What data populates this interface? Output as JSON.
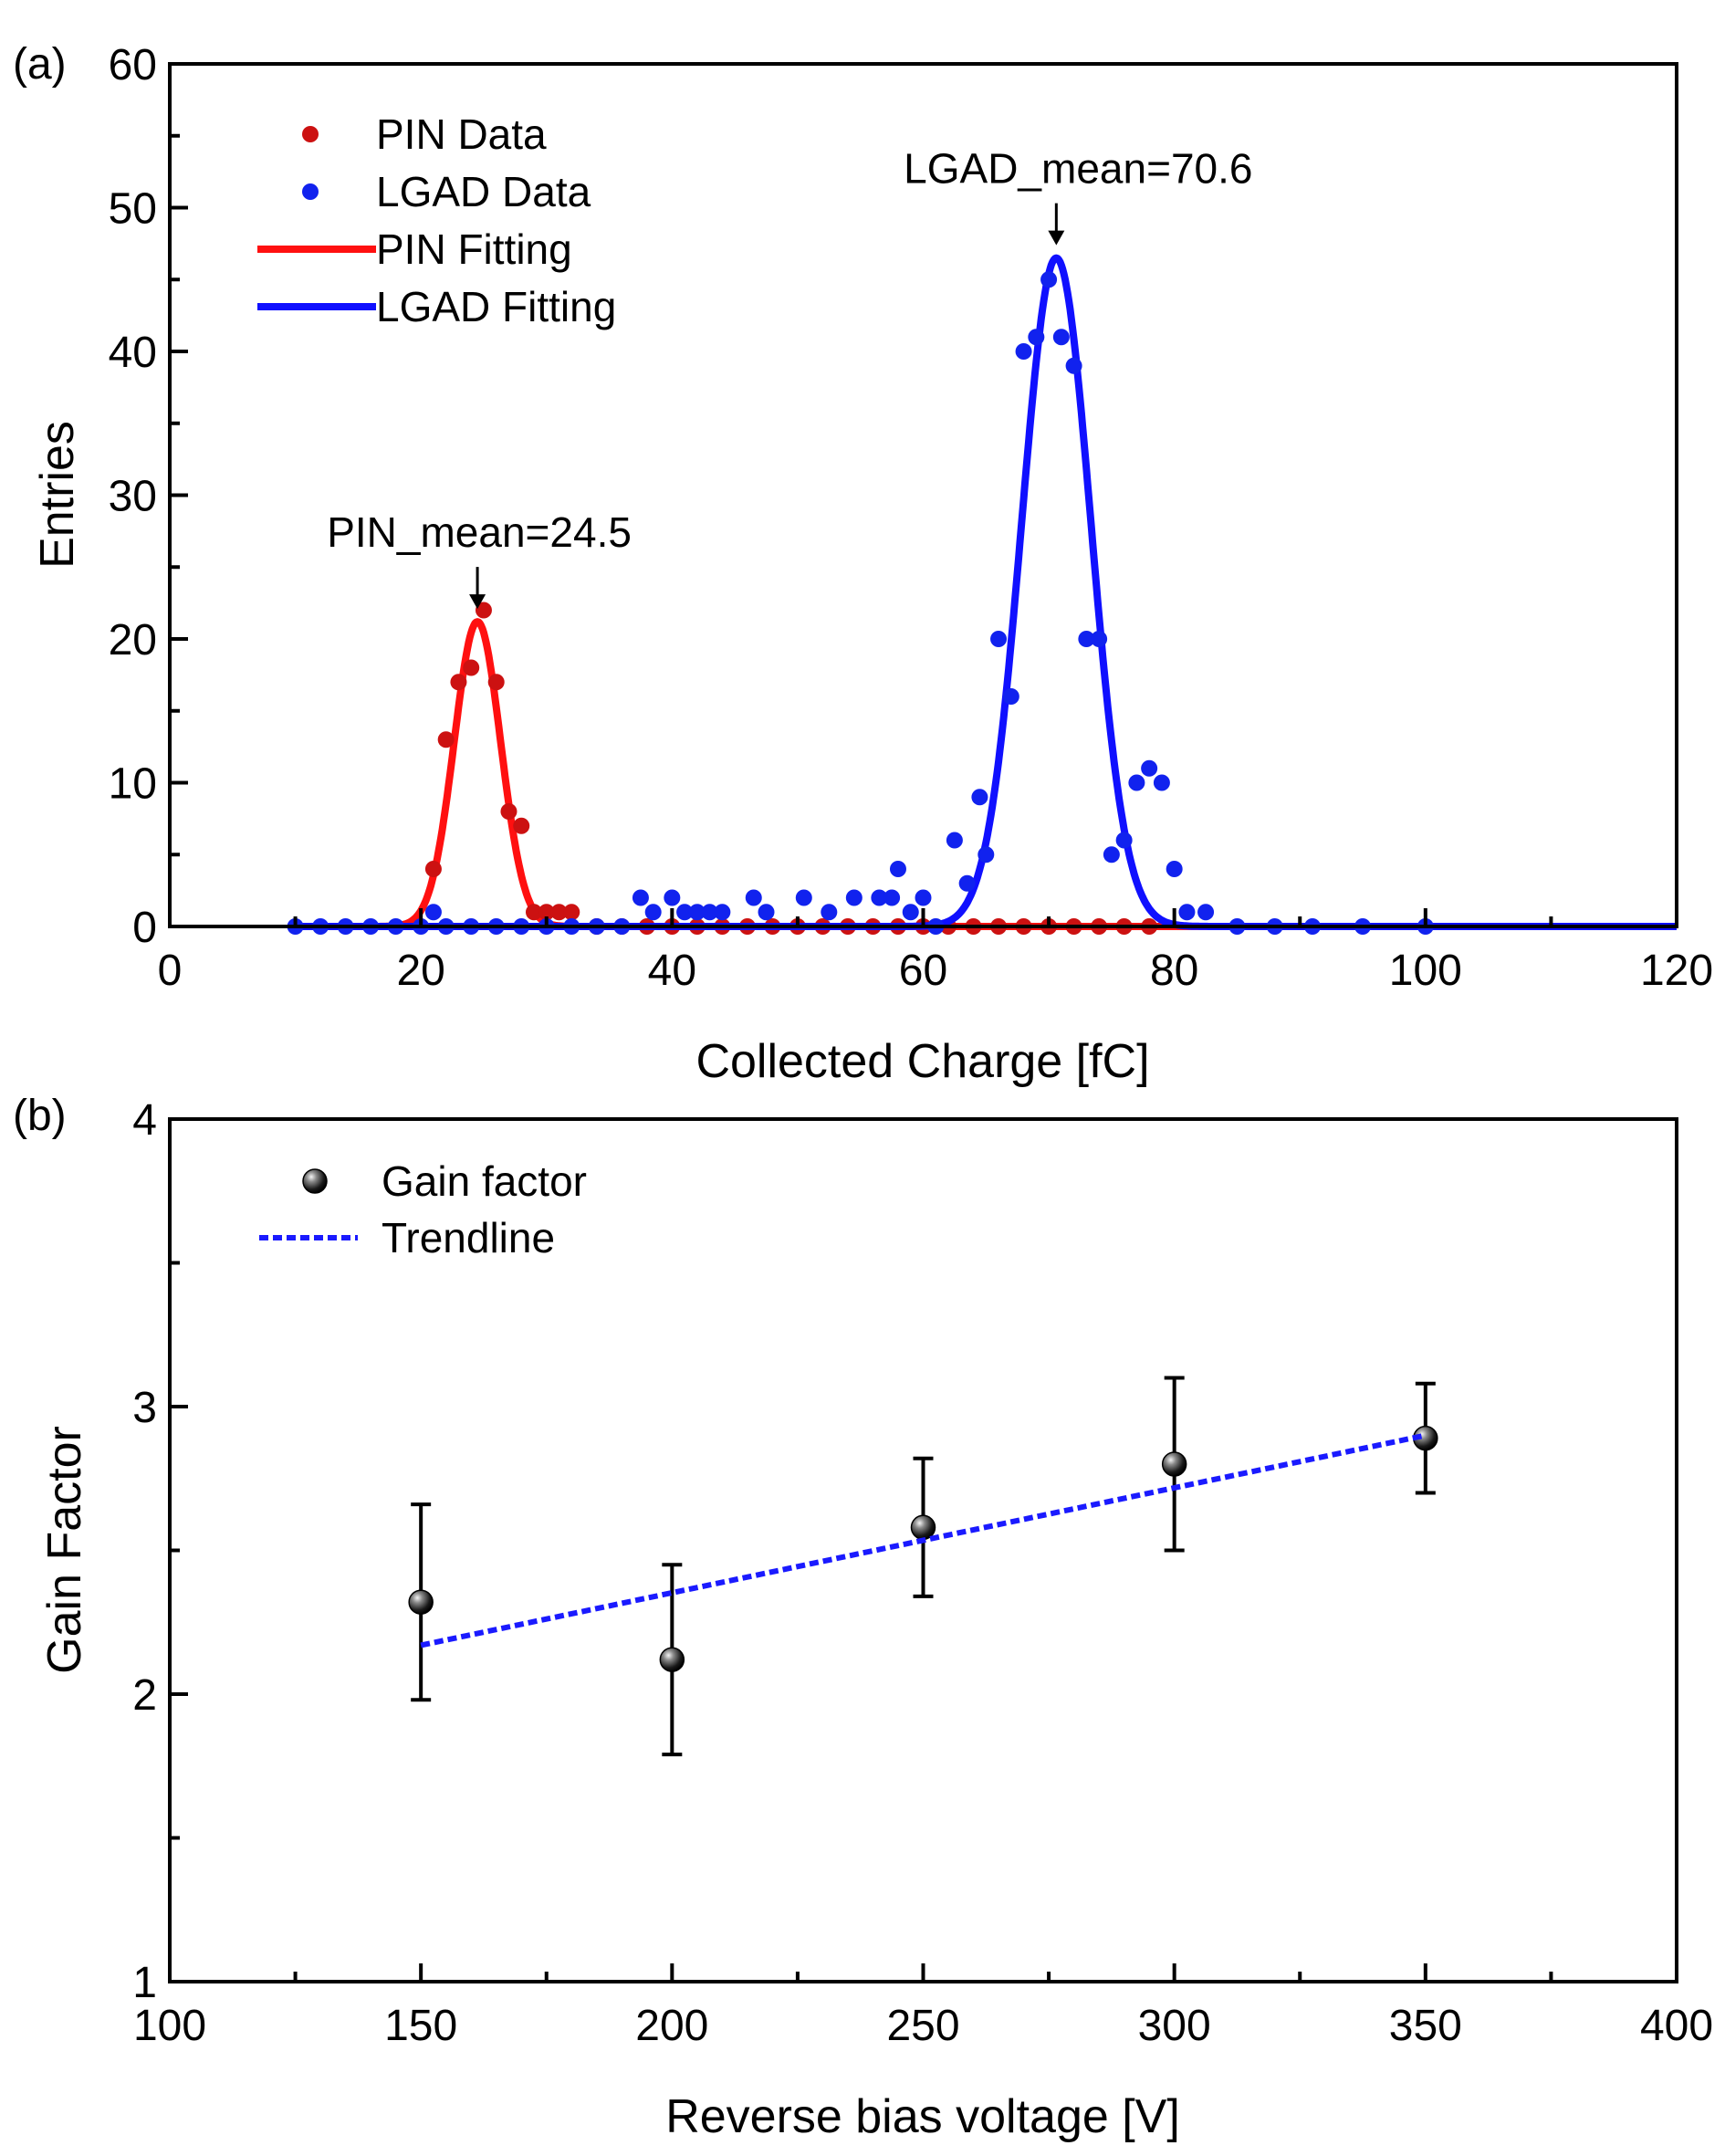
{
  "chart_data": [
    {
      "panel_label": "(a)",
      "type": "scatter",
      "xlabel": "Collected Charge [fC]",
      "ylabel": "Entries",
      "xlim": [
        0,
        120
      ],
      "ylim": [
        0,
        60
      ],
      "xticks": [
        "0",
        "20",
        "40",
        "60",
        "80",
        "100",
        "120"
      ],
      "yticks": [
        "0",
        "10",
        "20",
        "30",
        "40",
        "50",
        "60"
      ],
      "grid": false,
      "legend_position": "top-left",
      "legend": [
        {
          "label": "PIN Data",
          "kind": "marker",
          "color": "#cc1111"
        },
        {
          "label": "LGAD Data",
          "kind": "marker",
          "color": "#1122ee"
        },
        {
          "label": "PIN Fitting",
          "kind": "line",
          "color": "#ff1010"
        },
        {
          "label": "LGAD Fitting",
          "kind": "line",
          "color": "#1010ff"
        }
      ],
      "annotations": [
        {
          "text": "PIN_mean=24.5",
          "x": 24.5,
          "y": 21.2
        },
        {
          "text": "LGAD_mean=70.6",
          "x": 70.6,
          "y": 46.5
        }
      ],
      "series": [
        {
          "name": "PIN Data",
          "color": "#cc1111",
          "x": [
            21,
            22,
            23,
            24,
            25,
            26,
            27,
            28,
            29,
            30,
            31,
            32,
            34,
            36,
            38,
            40,
            42,
            44,
            46,
            48,
            50,
            52,
            54,
            56,
            58,
            60,
            62,
            64,
            66,
            68,
            70,
            72,
            74,
            76,
            78
          ],
          "y": [
            4,
            13,
            17,
            18,
            22,
            17,
            8,
            7,
            1,
            1,
            1,
            1,
            0,
            0,
            0,
            0,
            0,
            0,
            0,
            0,
            0,
            0,
            0,
            0,
            0,
            0,
            0,
            0,
            0,
            0,
            0,
            0,
            0,
            0,
            0
          ]
        },
        {
          "name": "LGAD Data",
          "color": "#1122ee",
          "x": [
            10,
            12,
            14,
            16,
            18,
            20,
            21,
            22,
            24,
            26,
            28,
            30,
            32,
            34,
            36,
            37.5,
            38.5,
            40,
            41,
            42,
            43,
            44,
            46.5,
            47.5,
            50.5,
            52.5,
            54.5,
            56.5,
            57.5,
            58,
            59,
            60,
            61,
            62.5,
            63.5,
            64.5,
            65,
            66,
            67,
            68,
            69,
            70,
            71,
            72,
            73,
            74,
            75,
            76,
            77,
            78,
            79,
            80,
            81,
            82.5,
            85,
            88,
            91,
            95,
            100
          ],
          "y": [
            0,
            0,
            0,
            0,
            0,
            0,
            1,
            0,
            0,
            0,
            0,
            0,
            0,
            0,
            0,
            2,
            1,
            2,
            1,
            1,
            1,
            1,
            2,
            1,
            2,
            1,
            2,
            2,
            2,
            4,
            1,
            2,
            0,
            6,
            3,
            9,
            5,
            20,
            16,
            40,
            41,
            45,
            41,
            39,
            20,
            20,
            5,
            6,
            10,
            11,
            10,
            4,
            1,
            1,
            0,
            0,
            0,
            0,
            0
          ]
        },
        {
          "name": "PIN Fitting",
          "type": "gaussian",
          "color": "#ff1010",
          "amplitude": 21.2,
          "mean": 24.5,
          "sigma": 1.85,
          "x_range": [
            10,
            120
          ]
        },
        {
          "name": "LGAD Fitting",
          "type": "gaussian",
          "color": "#1010ff",
          "amplitude": 46.5,
          "mean": 70.6,
          "sigma": 2.75,
          "x_range": [
            10,
            120
          ]
        }
      ]
    },
    {
      "panel_label": "(b)",
      "type": "scatter",
      "xlabel": "Reverse bias voltage [V]",
      "ylabel": "Gain Factor",
      "xlim": [
        100,
        400
      ],
      "ylim": [
        1,
        4
      ],
      "xticks": [
        "100",
        "150",
        "200",
        "250",
        "300",
        "350",
        "400"
      ],
      "yticks": [
        "1",
        "2",
        "3",
        "4"
      ],
      "grid": false,
      "legend_position": "top-left",
      "legend": [
        {
          "label": "Gain factor",
          "kind": "sphere",
          "color": "#000000"
        },
        {
          "label": "Trendline",
          "kind": "dashed",
          "color": "#1a1aff"
        }
      ],
      "series": [
        {
          "name": "Gain factor",
          "color": "#000000",
          "x": [
            150,
            200,
            250,
            300,
            350
          ],
          "y": [
            2.32,
            2.12,
            2.58,
            2.8,
            2.89
          ],
          "yerr": [
            0.34,
            0.33,
            0.24,
            0.3,
            0.19
          ]
        },
        {
          "name": "Trendline",
          "type": "line",
          "style": "dotted",
          "color": "#1a1aff",
          "x": [
            150,
            350
          ],
          "y": [
            2.17,
            2.9
          ]
        }
      ]
    }
  ]
}
